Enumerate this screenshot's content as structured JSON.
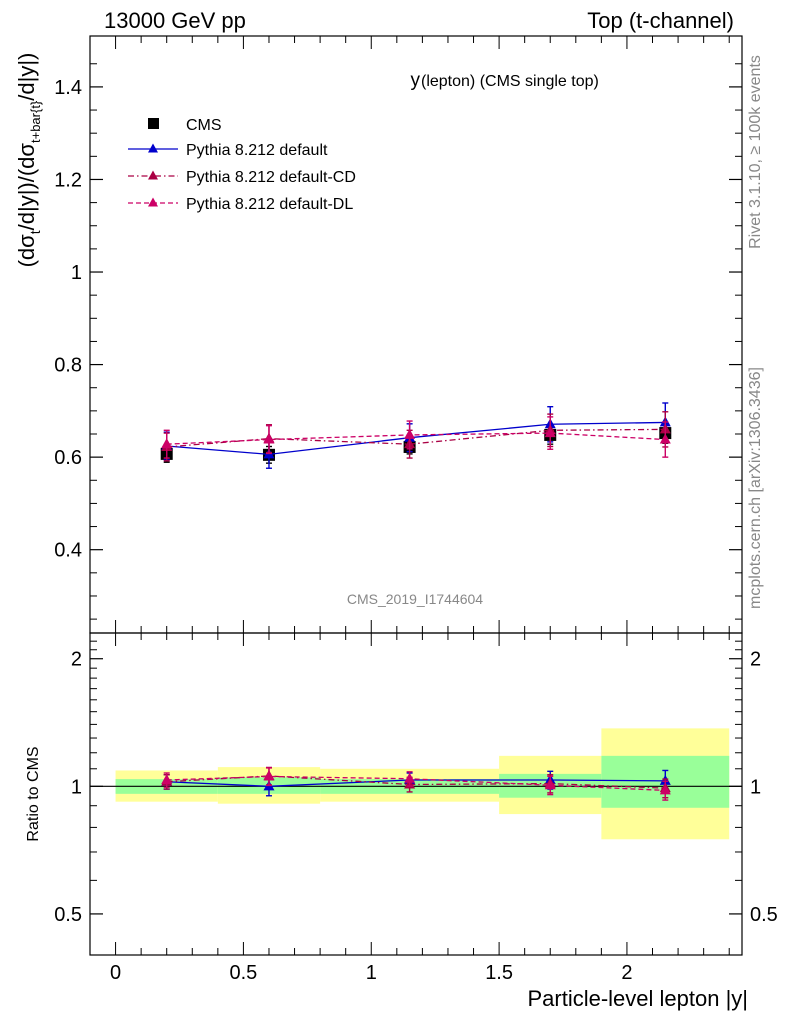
{
  "header": {
    "left": "13000 GeV pp",
    "right": "Top (t-channel)"
  },
  "side_labels": {
    "rivet": "Rivet 3.1.10, ≥ 100k events",
    "mcplots": "mcplots.cern.ch [arXiv:1306.3436]"
  },
  "chart_data": [
    {
      "type": "line",
      "panel": "main",
      "title_main": "y",
      "title_sub": "(lepton) (CMS single top)",
      "watermark": "CMS_2019_I1744604",
      "ylabel": {
        "p1": "(dσ",
        "s1": "t",
        "p2": "/d|y|)/(dσ",
        "s2": "t+bar{t}",
        "p3": "/d|y|)"
      },
      "xlim": [
        -0.1,
        2.45
      ],
      "ylim": [
        0.22,
        1.51
      ],
      "yticks": [
        0.4,
        0.6,
        0.8,
        1.0,
        1.2,
        1.4
      ],
      "ytick_labels": [
        "0.4",
        "0.6",
        "0.8",
        "1",
        "1.2",
        "1.4"
      ],
      "legend_position": "top-left",
      "series": [
        {
          "name": "CMS",
          "color": "#000000",
          "marker": "square",
          "line": "none",
          "x": [
            0.2,
            0.6,
            1.15,
            1.7,
            2.15
          ],
          "y": [
            0.607,
            0.605,
            0.622,
            0.648,
            0.652
          ],
          "err": [
            0.018,
            0.018,
            0.015,
            0.02,
            0.022
          ]
        },
        {
          "name": "Pythia 8.212 default",
          "color": "#0000cc",
          "marker": "triangle",
          "line": "solid",
          "x": [
            0.2,
            0.6,
            1.15,
            1.7,
            2.15
          ],
          "y": [
            0.624,
            0.606,
            0.642,
            0.671,
            0.675
          ],
          "err": [
            0.03,
            0.03,
            0.03,
            0.038,
            0.042
          ]
        },
        {
          "name": "Pythia 8.212 default-CD",
          "color": "#aa0044",
          "marker": "triangle",
          "line": "dashdot",
          "x": [
            0.2,
            0.6,
            1.15,
            1.7,
            2.15
          ],
          "y": [
            0.622,
            0.64,
            0.628,
            0.658,
            0.66
          ],
          "err": [
            0.03,
            0.03,
            0.03,
            0.035,
            0.038
          ]
        },
        {
          "name": "Pythia 8.212 default-DL",
          "color": "#cc0066",
          "marker": "triangle",
          "line": "dashed",
          "x": [
            0.2,
            0.6,
            1.15,
            1.7,
            2.15
          ],
          "y": [
            0.628,
            0.638,
            0.648,
            0.652,
            0.638
          ],
          "err": [
            0.03,
            0.03,
            0.03,
            0.035,
            0.038
          ]
        }
      ]
    },
    {
      "type": "line",
      "panel": "ratio",
      "ylabel": "Ratio to CMS",
      "xlabel": "Particle-level lepton |y|",
      "log_y": true,
      "xlim": [
        -0.1,
        2.45
      ],
      "ylim": [
        0.4,
        2.3
      ],
      "yticks": [
        0.5,
        1,
        2
      ],
      "ytick_labels": [
        "0.5",
        "1",
        "2"
      ],
      "xticks": [
        0,
        0.5,
        1,
        1.5,
        2
      ],
      "xtick_labels": [
        "0",
        "0.5",
        "1",
        "1.5",
        "2"
      ],
      "bands": {
        "edges": [
          0.0,
          0.4,
          0.8,
          1.5,
          1.9,
          2.4
        ],
        "inner": [
          [
            0.96,
            1.04
          ],
          [
            0.96,
            1.05
          ],
          [
            0.96,
            1.04
          ],
          [
            0.94,
            1.07
          ],
          [
            0.89,
            1.18
          ]
        ],
        "outer": [
          [
            0.92,
            1.09
          ],
          [
            0.91,
            1.11
          ],
          [
            0.92,
            1.1
          ],
          [
            0.86,
            1.18
          ],
          [
            0.75,
            1.37
          ]
        ],
        "inner_color": "#99ff99",
        "outer_color": "#ffff99"
      },
      "series": [
        {
          "name": "Pythia 8.212 default",
          "color": "#0000cc",
          "line": "solid",
          "x": [
            0.2,
            0.6,
            1.15,
            1.7,
            2.15
          ],
          "y": [
            1.025,
            1.0,
            1.035,
            1.035,
            1.03
          ],
          "err": [
            0.04,
            0.05,
            0.04,
            0.05,
            0.06
          ]
        },
        {
          "name": "Pythia 8.212 default-CD",
          "color": "#aa0044",
          "line": "dashdot",
          "x": [
            0.2,
            0.6,
            1.15,
            1.7,
            2.15
          ],
          "y": [
            1.025,
            1.058,
            1.01,
            1.015,
            0.99
          ],
          "err": [
            0.04,
            0.05,
            0.04,
            0.05,
            0.05
          ]
        },
        {
          "name": "Pythia 8.212 default-DL",
          "color": "#cc0066",
          "line": "dashed",
          "x": [
            0.2,
            0.6,
            1.15,
            1.7,
            2.15
          ],
          "y": [
            1.035,
            1.055,
            1.042,
            1.006,
            0.978
          ],
          "err": [
            0.04,
            0.05,
            0.04,
            0.05,
            0.05
          ]
        }
      ]
    }
  ]
}
